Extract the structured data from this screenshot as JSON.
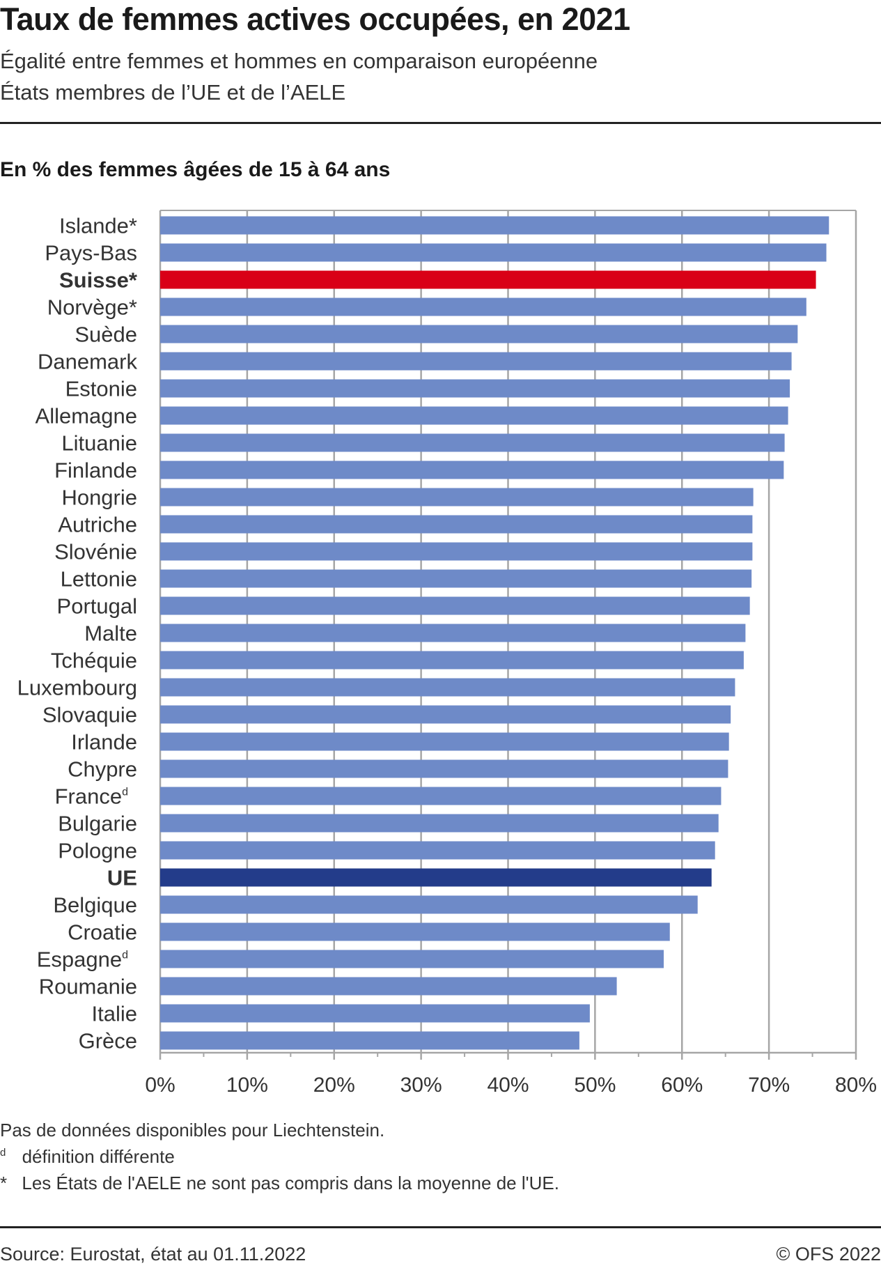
{
  "header": {
    "title": "Taux de femmes actives occupées, en 2021",
    "subtitle1": "Égalité entre femmes et hommes en comparaison européenne",
    "subtitle2": "États membres de l’UE et de l’AELE",
    "unit_label": "En % des femmes âgées de 15 à 64 ans"
  },
  "notes": {
    "line1": "Pas de données disponibles pour Liechtenstein.",
    "d_marker": "d",
    "d_text": "définition différente",
    "star_marker": "*",
    "star_text": "Les États de l'AELE ne sont pas compris dans la moyenne de l'UE."
  },
  "footer": {
    "source": "Source: Eurostat, état au 01.11.2022",
    "copyright": "© OFS 2022"
  },
  "colors": {
    "default_bar": "#6e8ac8",
    "switzerland_bar": "#d90017",
    "eu_bar": "#233c8a",
    "grid": "#a6a6a6"
  },
  "chart_data": {
    "type": "bar",
    "orientation": "horizontal",
    "title": "Taux de femmes actives occupées, en 2021",
    "xlabel": "",
    "ylabel": "",
    "xlim": [
      0,
      80
    ],
    "x_ticks": [
      "0%",
      "10%",
      "20%",
      "30%",
      "40%",
      "50%",
      "60%",
      "70%",
      "80%"
    ],
    "grid": true,
    "categories": [
      {
        "label": "Islande",
        "sup": "*",
        "value": 76.9,
        "style": "default"
      },
      {
        "label": "Pays-Bas",
        "sup": "",
        "value": 76.6,
        "style": "default"
      },
      {
        "label": "Suisse",
        "sup": "*",
        "value": 75.4,
        "style": "switzerland"
      },
      {
        "label": "Norvège",
        "sup": "*",
        "value": 74.3,
        "style": "default"
      },
      {
        "label": "Suède",
        "sup": "",
        "value": 73.3,
        "style": "default"
      },
      {
        "label": "Danemark",
        "sup": "",
        "value": 72.6,
        "style": "default"
      },
      {
        "label": "Estonie",
        "sup": "",
        "value": 72.4,
        "style": "default"
      },
      {
        "label": "Allemagne",
        "sup": "",
        "value": 72.2,
        "style": "default"
      },
      {
        "label": "Lituanie",
        "sup": "",
        "value": 71.8,
        "style": "default"
      },
      {
        "label": "Finlande",
        "sup": "",
        "value": 71.7,
        "style": "default"
      },
      {
        "label": "Hongrie",
        "sup": "",
        "value": 68.2,
        "style": "default"
      },
      {
        "label": "Autriche",
        "sup": "",
        "value": 68.1,
        "style": "default"
      },
      {
        "label": "Slovénie",
        "sup": "",
        "value": 68.1,
        "style": "default"
      },
      {
        "label": "Lettonie",
        "sup": "",
        "value": 68.0,
        "style": "default"
      },
      {
        "label": "Portugal",
        "sup": "",
        "value": 67.8,
        "style": "default"
      },
      {
        "label": "Malte",
        "sup": "",
        "value": 67.3,
        "style": "default"
      },
      {
        "label": "Tchéquie",
        "sup": "",
        "value": 67.1,
        "style": "default"
      },
      {
        "label": "Luxembourg",
        "sup": "",
        "value": 66.1,
        "style": "default"
      },
      {
        "label": "Slovaquie",
        "sup": "",
        "value": 65.6,
        "style": "default"
      },
      {
        "label": "Irlande",
        "sup": "",
        "value": 65.4,
        "style": "default"
      },
      {
        "label": "Chypre",
        "sup": "",
        "value": 65.3,
        "style": "default"
      },
      {
        "label": "France",
        "sup": "d",
        "value": 64.5,
        "style": "default"
      },
      {
        "label": "Bulgarie",
        "sup": "",
        "value": 64.2,
        "style": "default"
      },
      {
        "label": "Pologne",
        "sup": "",
        "value": 63.8,
        "style": "default"
      },
      {
        "label": "UE",
        "sup": "",
        "value": 63.4,
        "style": "eu"
      },
      {
        "label": "Belgique",
        "sup": "",
        "value": 61.8,
        "style": "default"
      },
      {
        "label": "Croatie",
        "sup": "",
        "value": 58.6,
        "style": "default"
      },
      {
        "label": "Espagne",
        "sup": "d",
        "value": 57.9,
        "style": "default"
      },
      {
        "label": "Roumanie",
        "sup": "",
        "value": 52.5,
        "style": "default"
      },
      {
        "label": "Italie",
        "sup": "",
        "value": 49.4,
        "style": "default"
      },
      {
        "label": "Grèce",
        "sup": "",
        "value": 48.2,
        "style": "default"
      }
    ]
  }
}
